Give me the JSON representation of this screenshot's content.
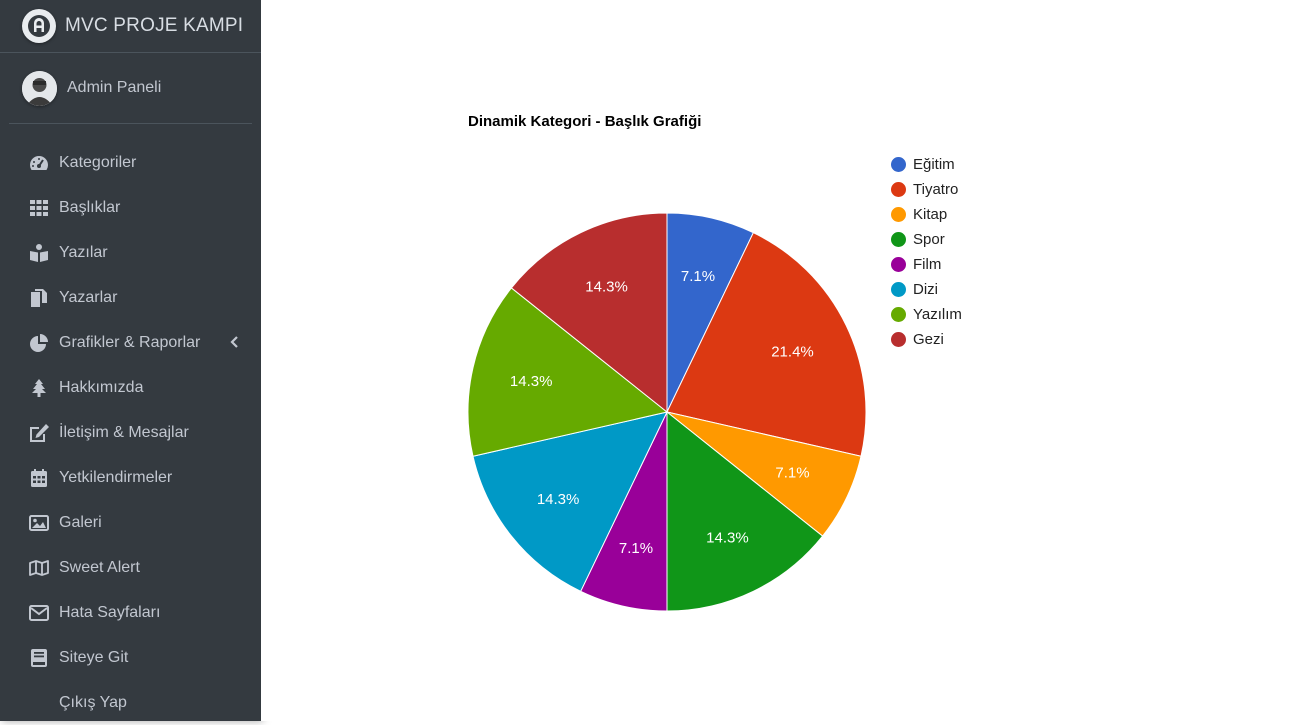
{
  "brand": {
    "title": "MVC PROJE KAMPI"
  },
  "user": {
    "name": "Admin Paneli"
  },
  "nav": [
    {
      "label": "Kategoriler",
      "icon": "tachometer-icon"
    },
    {
      "label": "Başlıklar",
      "icon": "grid-icon"
    },
    {
      "label": "Yazılar",
      "icon": "reader-icon"
    },
    {
      "label": "Yazarlar",
      "icon": "copy-icon"
    },
    {
      "label": "Grafikler & Raporlar",
      "icon": "pie-chart-icon",
      "chevron": "chevron-left-icon"
    },
    {
      "label": "Hakkımızda",
      "icon": "tree-icon"
    },
    {
      "label": "İletişim & Mesajlar",
      "icon": "edit-icon"
    },
    {
      "label": "Yetkilendirmeler",
      "icon": "calendar-icon"
    },
    {
      "label": "Galeri",
      "icon": "image-icon"
    },
    {
      "label": "Sweet Alert",
      "icon": "map-icon"
    },
    {
      "label": "Hata Sayfaları",
      "icon": "envelope-icon"
    },
    {
      "label": "Siteye Git",
      "icon": "book-icon"
    },
    {
      "label": "Çıkış Yap",
      "icon": ""
    }
  ],
  "colors": {
    "sidebar_bg": "#343a40",
    "sidebar_text": "#c2c7d0"
  },
  "chart_data": {
    "type": "pie",
    "title": "Dinamik Kategori - Başlık Grafiği",
    "legend_position": "right",
    "slices": [
      {
        "label": "Eğitim",
        "value": 1,
        "percent_label": "7.1%",
        "color": "#3366cc"
      },
      {
        "label": "Tiyatro",
        "value": 3,
        "percent_label": "21.4%",
        "color": "#dc3912"
      },
      {
        "label": "Kitap",
        "value": 1,
        "percent_label": "7.1%",
        "color": "#ff9900"
      },
      {
        "label": "Spor",
        "value": 2,
        "percent_label": "14.3%",
        "color": "#109618"
      },
      {
        "label": "Film",
        "value": 1,
        "percent_label": "7.1%",
        "color": "#990099"
      },
      {
        "label": "Dizi",
        "value": 2,
        "percent_label": "14.3%",
        "color": "#0099c6"
      },
      {
        "label": "Yazılım",
        "value": 2,
        "percent_label": "14.3%",
        "color": "#66aa00"
      },
      {
        "label": "Gezi",
        "value": 2,
        "percent_label": "14.3%",
        "color": "#b82e2e"
      }
    ]
  }
}
